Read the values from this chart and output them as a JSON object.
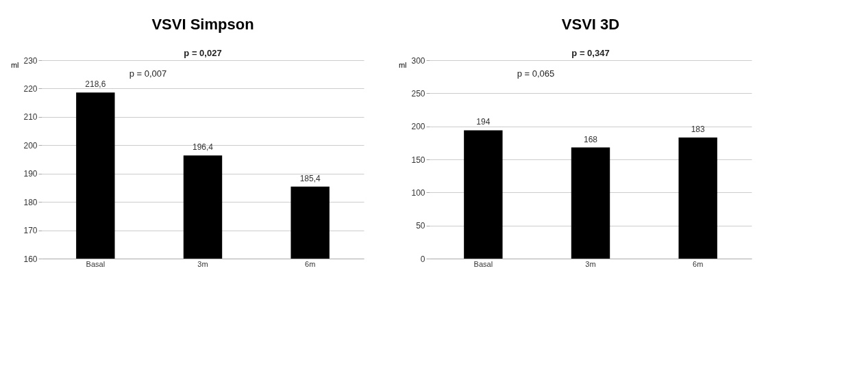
{
  "chart_data": [
    {
      "type": "bar",
      "title": "VSVI Simpson",
      "ylabel": "ml",
      "categories": [
        "Basal",
        "3m",
        "6m"
      ],
      "values": [
        218.6,
        196.4,
        185.4
      ],
      "value_labels": [
        "218,6",
        "196,4",
        "185,4"
      ],
      "color": "#000000",
      "ylim": [
        160,
        230
      ],
      "yticks": [
        160,
        170,
        180,
        190,
        200,
        210,
        220,
        230
      ],
      "grid": "y",
      "annotations": [
        "p = 0,027",
        "p = 0,007"
      ]
    },
    {
      "type": "bar",
      "title": "VSVI 3D",
      "ylabel": "ml",
      "categories": [
        "Basal",
        "3m",
        "6m"
      ],
      "values": [
        194,
        168,
        183
      ],
      "data_labels": true,
      "color": "#000000",
      "ylim": [
        0,
        300
      ],
      "yticks": [
        0,
        50,
        100,
        150,
        200,
        250,
        300
      ],
      "grid": "y",
      "annotations": [
        "p = 0,347",
        "p = 0,065"
      ]
    }
  ]
}
